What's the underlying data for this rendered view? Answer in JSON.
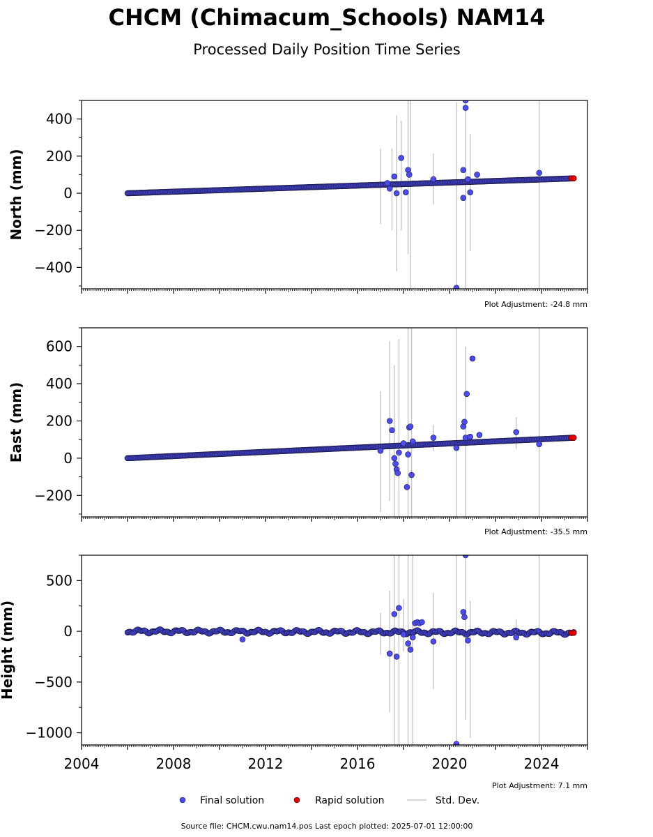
{
  "title": "CHCM (Chimacum_Schools) NAM14",
  "subtitle": "Processed Daily Position Time Series",
  "footer": "Source file: CHCM.cwu.nam14.pos  Last epoch plotted: 2025-07-01 12:00:00",
  "legend": {
    "final_label": "Final solution",
    "rapid_label": "Rapid solution",
    "std_label": "Std. Dev."
  },
  "colors": {
    "final": "#4b4bf0",
    "rapid": "#e00000",
    "std": "#c8c8c8",
    "marker_edge": "#1a1a40"
  },
  "chart_data": [
    {
      "type": "scatter",
      "component": "north",
      "ylabel": "North (mm)",
      "ylim": [
        -515,
        500
      ],
      "yticks": [
        -400,
        -200,
        0,
        200,
        400
      ],
      "ytick_labels": [
        "−400",
        "−200",
        "0",
        "200",
        "400"
      ],
      "xlim": [
        2004,
        2026
      ],
      "adjustment": "Plot Adjustment: -24.8 mm",
      "trend": {
        "start": [
          2006.0,
          0
        ],
        "end": [
          2025.4,
          80
        ],
        "wobble": 0
      },
      "rapid": [
        [
          2025.3,
          80
        ],
        [
          2025.4,
          80
        ]
      ],
      "outliers": [
        [
          2017.3,
          55
        ],
        [
          2017.4,
          25
        ],
        [
          2017.6,
          90
        ],
        [
          2017.7,
          0
        ],
        [
          2017.9,
          190
        ],
        [
          2018.1,
          5
        ],
        [
          2018.2,
          125
        ],
        [
          2018.25,
          100
        ],
        [
          2019.3,
          75
        ],
        [
          2020.3,
          -510
        ],
        [
          2020.6,
          125
        ],
        [
          2020.6,
          -25
        ],
        [
          2020.7,
          500
        ],
        [
          2020.7,
          460
        ],
        [
          2020.8,
          75
        ],
        [
          2020.9,
          5
        ],
        [
          2021.2,
          100
        ],
        [
          2023.9,
          110
        ]
      ],
      "errorbars": [
        [
          2017.0,
          -165,
          240
        ],
        [
          2017.5,
          -200,
          240
        ],
        [
          2017.7,
          -420,
          420
        ],
        [
          2017.9,
          -200,
          390
        ],
        [
          2018.2,
          -330,
          500
        ],
        [
          2018.3,
          -515,
          500
        ],
        [
          2019.3,
          -60,
          215
        ],
        [
          2020.3,
          -515,
          490
        ],
        [
          2020.7,
          -515,
          500
        ],
        [
          2020.9,
          -310,
          320
        ],
        [
          2023.9,
          -515,
          500
        ]
      ]
    },
    {
      "type": "scatter",
      "component": "east",
      "ylabel": "East (mm)",
      "ylim": [
        -315,
        700
      ],
      "yticks": [
        -200,
        0,
        200,
        400,
        600
      ],
      "ytick_labels": [
        "−200",
        "0",
        "200",
        "400",
        "600"
      ],
      "xlim": [
        2004,
        2026
      ],
      "adjustment": "Plot Adjustment: -35.5 mm",
      "trend": {
        "start": [
          2006.0,
          0
        ],
        "end": [
          2025.4,
          110
        ],
        "wobble": 0
      },
      "rapid": [
        [
          2025.3,
          110
        ],
        [
          2025.4,
          110
        ]
      ],
      "outliers": [
        [
          2017.0,
          40
        ],
        [
          2017.4,
          200
        ],
        [
          2017.5,
          150
        ],
        [
          2017.6,
          0
        ],
        [
          2017.65,
          -30
        ],
        [
          2017.7,
          -60
        ],
        [
          2017.75,
          -80
        ],
        [
          2017.8,
          30
        ],
        [
          2018.0,
          80
        ],
        [
          2018.15,
          -155
        ],
        [
          2018.2,
          20
        ],
        [
          2018.25,
          165
        ],
        [
          2018.3,
          170
        ],
        [
          2018.35,
          -90
        ],
        [
          2018.4,
          90
        ],
        [
          2019.3,
          110
        ],
        [
          2020.3,
          55
        ],
        [
          2020.6,
          170
        ],
        [
          2020.65,
          195
        ],
        [
          2020.7,
          110
        ],
        [
          2020.75,
          345
        ],
        [
          2020.9,
          115
        ],
        [
          2021.0,
          535
        ],
        [
          2021.3,
          125
        ],
        [
          2022.9,
          140
        ],
        [
          2023.9,
          75
        ]
      ],
      "errorbars": [
        [
          2017.0,
          -290,
          360
        ],
        [
          2017.4,
          -230,
          630
        ],
        [
          2017.6,
          -315,
          500
        ],
        [
          2017.8,
          -315,
          640
        ],
        [
          2018.2,
          -315,
          700
        ],
        [
          2018.35,
          -315,
          700
        ],
        [
          2019.3,
          40,
          180
        ],
        [
          2020.3,
          -315,
          700
        ],
        [
          2020.7,
          -315,
          600
        ],
        [
          2022.9,
          50,
          220
        ],
        [
          2023.9,
          -315,
          700
        ]
      ]
    },
    {
      "type": "scatter",
      "component": "height",
      "ylabel": "Height (mm)",
      "ylim": [
        -1120,
        750
      ],
      "yticks": [
        -1000,
        -500,
        0,
        500
      ],
      "ytick_labels": [
        "−1000",
        "−500",
        "0",
        "500"
      ],
      "xlim": [
        2004,
        2026
      ],
      "xticks": [
        2004,
        2008,
        2012,
        2016,
        2020,
        2024
      ],
      "xtick_labels": [
        "2004",
        "2008",
        "2012",
        "2016",
        "2020",
        "2024"
      ],
      "adjustment": "Plot Adjustment: 7.1 mm",
      "trend": {
        "start": [
          2006.0,
          0
        ],
        "end": [
          2025.4,
          -15
        ],
        "wobble": 25
      },
      "rapid": [
        [
          2025.3,
          -15
        ],
        [
          2025.4,
          -15
        ]
      ],
      "outliers": [
        [
          2011.0,
          -80
        ],
        [
          2017.4,
          -220
        ],
        [
          2017.6,
          170
        ],
        [
          2017.7,
          -250
        ],
        [
          2017.8,
          230
        ],
        [
          2018.0,
          -30
        ],
        [
          2018.2,
          -120
        ],
        [
          2018.3,
          -180
        ],
        [
          2018.4,
          -60
        ],
        [
          2018.5,
          80
        ],
        [
          2018.6,
          90
        ],
        [
          2018.7,
          80
        ],
        [
          2018.8,
          90
        ],
        [
          2019.3,
          -100
        ],
        [
          2020.3,
          -1110
        ],
        [
          2020.6,
          190
        ],
        [
          2020.65,
          140
        ],
        [
          2020.7,
          750
        ],
        [
          2020.8,
          -90
        ],
        [
          2022.9,
          -60
        ]
      ],
      "errorbars": [
        [
          2017.0,
          -230,
          180
        ],
        [
          2017.4,
          -800,
          400
        ],
        [
          2017.6,
          -1120,
          750
        ],
        [
          2017.8,
          -1120,
          750
        ],
        [
          2018.0,
          -200,
          320
        ],
        [
          2018.2,
          -1120,
          750
        ],
        [
          2018.4,
          -1120,
          750
        ],
        [
          2019.3,
          -570,
          380
        ],
        [
          2020.3,
          -1120,
          750
        ],
        [
          2020.7,
          -870,
          750
        ],
        [
          2020.9,
          -1050,
          300
        ],
        [
          2022.9,
          -80,
          120
        ],
        [
          2023.9,
          -1120,
          750
        ]
      ]
    }
  ]
}
